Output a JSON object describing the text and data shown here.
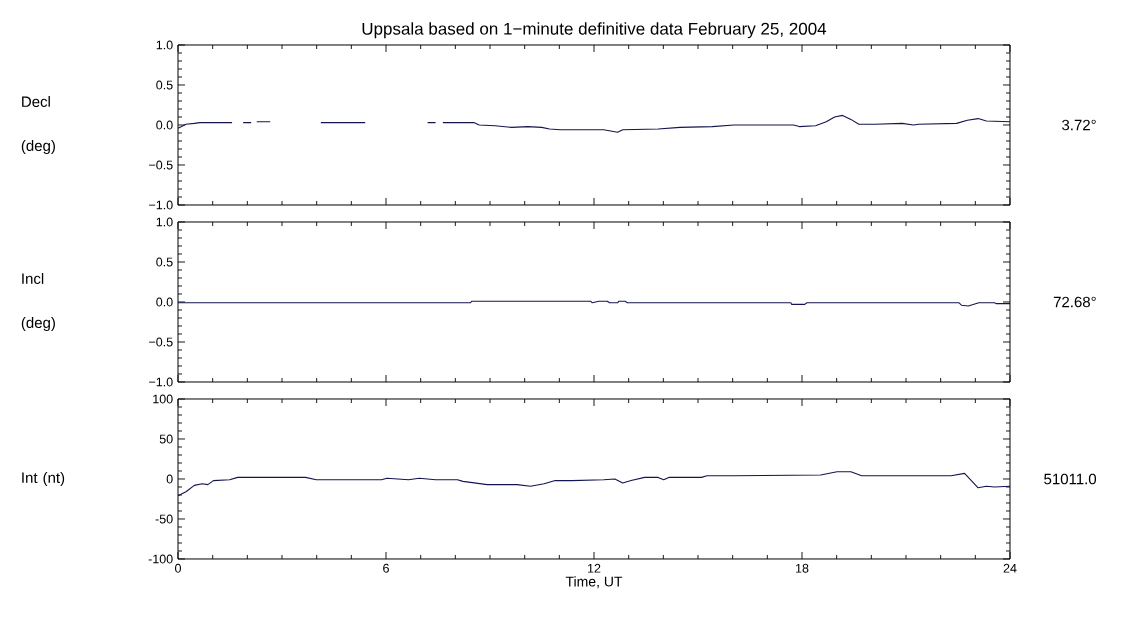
{
  "chart_data": [
    {
      "type": "line",
      "title": "Uppsala based on 1−minute definitive data February 25, 2004",
      "ylabel": "Decl (deg)",
      "annotations": [
        "3.72°"
      ],
      "x": [
        0,
        0.23,
        0.47,
        0.63,
        1.56,
        1.7,
        1.88,
        2.11,
        2.2,
        2.27,
        2.66,
        3.4,
        4.12,
        5.4,
        6.3,
        7.2,
        7.43,
        7.5,
        7.64,
        8.53,
        8.69,
        9.15,
        9.62,
        10.09,
        10.49,
        10.72,
        11.03,
        12.28,
        12.68,
        12.83,
        13.85,
        14.48,
        15.41,
        16.04,
        17.76,
        17.92,
        18.39,
        18.7,
        18.94,
        19.17,
        19.41,
        19.64,
        20.11,
        20.89,
        21.21,
        21.36,
        22.46,
        22.77,
        23.08,
        23.32,
        24
      ],
      "series": [
        {
          "color": "#141450",
          "values": [
            -0.04,
            0.01,
            0.02,
            0.03,
            0.03,
            null,
            0.03,
            0.03,
            null,
            0.04,
            0.04,
            null,
            0.03,
            0.03,
            null,
            0.03,
            0.03,
            null,
            0.03,
            0.03,
            0.0,
            -0.01,
            -0.03,
            -0.02,
            -0.03,
            -0.05,
            -0.06,
            -0.06,
            -0.09,
            -0.06,
            -0.05,
            -0.03,
            -0.02,
            0.0,
            0.0,
            -0.02,
            -0.01,
            0.04,
            0.1,
            0.12,
            0.07,
            0.01,
            0.01,
            0.02,
            0.0,
            0.01,
            0.02,
            0.06,
            0.08,
            0.05,
            0.04
          ]
        }
      ],
      "xlim": [
        0,
        24
      ],
      "xticks": [
        0,
        6,
        12,
        18,
        24
      ],
      "ylim": [
        -1,
        1
      ],
      "yticks": [
        {
          "value": -1,
          "label": "−1.0"
        },
        {
          "value": -0.5,
          "label": "−0.5"
        },
        {
          "value": 0,
          "label": "0.0"
        },
        {
          "value": 0.5,
          "label": "0.5"
        },
        {
          "value": 1,
          "label": "1.0"
        }
      ],
      "tick_labels": "y"
    },
    {
      "type": "line",
      "ylabel": "Incl (deg)",
      "annotations": [
        "72.68°"
      ],
      "x": [
        0,
        8.44,
        8.47,
        11.9,
        11.95,
        12.14,
        12.38,
        12.45,
        12.68,
        12.72,
        12.9,
        12.96,
        17.68,
        17.7,
        18.08,
        18.14,
        22.53,
        22.6,
        22.8,
        23.1,
        23.55,
        23.6,
        24
      ],
      "series": [
        {
          "color": "#141450",
          "values": [
            -0.01,
            -0.01,
            0.01,
            0.01,
            -0.01,
            0.01,
            0.01,
            -0.01,
            -0.01,
            0.01,
            0.01,
            -0.01,
            -0.01,
            -0.03,
            -0.03,
            -0.01,
            -0.01,
            -0.04,
            -0.05,
            -0.01,
            -0.01,
            -0.02,
            -0.02
          ]
        }
      ],
      "xlim": [
        0,
        24
      ],
      "xticks": [
        0,
        6,
        12,
        18,
        24
      ],
      "ylim": [
        -1,
        1
      ],
      "yticks": [
        {
          "value": -1,
          "label": "−1.0"
        },
        {
          "value": -0.5,
          "label": "−0.5"
        },
        {
          "value": 0,
          "label": "0.0"
        },
        {
          "value": 0.5,
          "label": "0.5"
        },
        {
          "value": 1,
          "label": "1.0"
        }
      ],
      "tick_labels": "y"
    },
    {
      "type": "line",
      "xlabel": "Time, UT",
      "ylabel": "Int (nt)",
      "annotations": [
        "51011.0"
      ],
      "x": [
        0,
        0.23,
        0.47,
        0.7,
        0.86,
        1.02,
        1.49,
        1.72,
        3.68,
        3.99,
        5.87,
        6.03,
        6.65,
        6.96,
        7.43,
        8.06,
        8.22,
        8.92,
        9.78,
        10.17,
        10.56,
        10.88,
        11.35,
        12.28,
        12.6,
        12.83,
        13.07,
        13.46,
        13.85,
        14.01,
        14.16,
        15.1,
        15.26,
        16.04,
        18.54,
        19.01,
        19.41,
        19.72,
        22.3,
        22.69,
        23.08,
        23.32,
        23.55,
        24
      ],
      "series": [
        {
          "color": "#141450",
          "values": [
            -21,
            -16,
            -8,
            -6,
            -7,
            -2,
            -1,
            2,
            2,
            -1,
            -1,
            1,
            -1,
            1,
            -1,
            -1,
            -3,
            -7,
            -7,
            -9,
            -6,
            -2,
            -2,
            -1,
            0,
            -5,
            -2,
            2,
            2,
            -1,
            2,
            2,
            4,
            4,
            5,
            9,
            9,
            4,
            4,
            7,
            -11,
            -9,
            -10,
            -9
          ]
        }
      ],
      "xlim": [
        0,
        24
      ],
      "xticks": [
        0,
        6,
        12,
        18,
        24
      ],
      "ylim": [
        -100,
        100
      ],
      "yticks": [
        -100,
        -50,
        0,
        50,
        100
      ]
    }
  ]
}
